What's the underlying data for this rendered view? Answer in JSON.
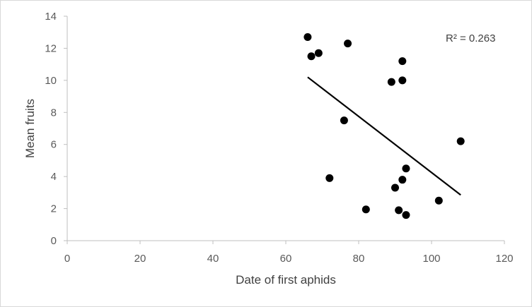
{
  "chart_data": {
    "type": "scatter",
    "xlabel": "Date of first aphids",
    "ylabel": "Mean fruits",
    "xlim": [
      0,
      120
    ],
    "ylim": [
      0,
      14
    ],
    "xticks": [
      "0",
      "20",
      "40",
      "60",
      "80",
      "100",
      "120"
    ],
    "yticks": [
      "0",
      "2",
      "4",
      "6",
      "8",
      "10",
      "12",
      "14"
    ],
    "grid": false,
    "points": [
      {
        "x": 66,
        "y": 12.7
      },
      {
        "x": 67,
        "y": 11.5
      },
      {
        "x": 69,
        "y": 11.7
      },
      {
        "x": 77,
        "y": 12.3
      },
      {
        "x": 92,
        "y": 11.2
      },
      {
        "x": 89,
        "y": 9.9
      },
      {
        "x": 92,
        "y": 10.0
      },
      {
        "x": 76,
        "y": 7.5
      },
      {
        "x": 108,
        "y": 6.2
      },
      {
        "x": 93,
        "y": 4.5
      },
      {
        "x": 72,
        "y": 3.9
      },
      {
        "x": 92,
        "y": 3.8
      },
      {
        "x": 90,
        "y": 3.3
      },
      {
        "x": 102,
        "y": 2.5
      },
      {
        "x": 82,
        "y": 1.95
      },
      {
        "x": 91,
        "y": 1.9
      },
      {
        "x": 93,
        "y": 1.6
      }
    ],
    "trendline": {
      "x": [
        66,
        108
      ],
      "y": [
        10.2,
        2.85
      ]
    },
    "annotation": "R² = 0.263",
    "point_color": "#000000",
    "trendline_color": "#000000"
  }
}
